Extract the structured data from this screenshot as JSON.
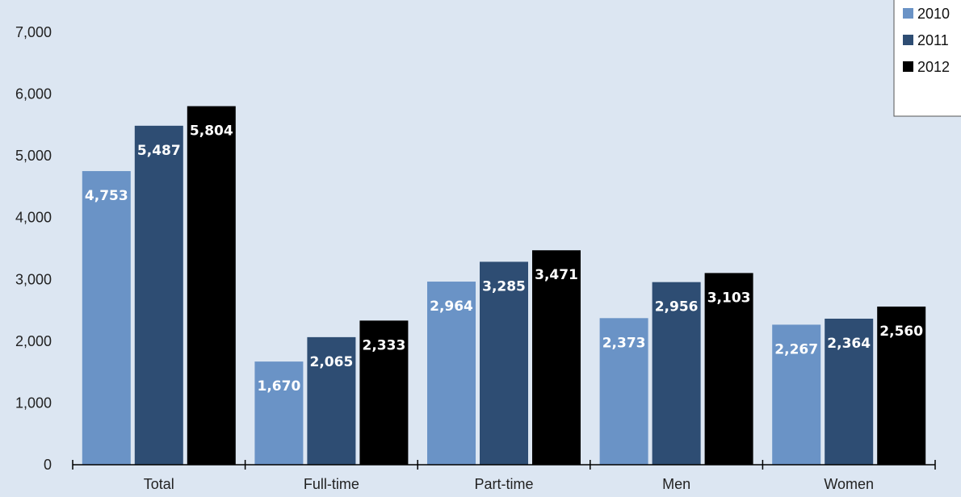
{
  "chart_data": {
    "type": "bar",
    "categories": [
      "Total",
      "Full-time",
      "Part-time",
      "Men",
      "Women"
    ],
    "series": [
      {
        "name": "2010",
        "color": "#6a93c6",
        "values": [
          4753,
          1670,
          2964,
          2373,
          2267
        ],
        "labels": [
          "4,753",
          "1,670",
          "2,964",
          "2,373",
          "2,267"
        ]
      },
      {
        "name": "2011",
        "color": "#2e4d73",
        "values": [
          5487,
          2065,
          3285,
          2956,
          2364
        ],
        "labels": [
          "5,487",
          "2,065",
          "3,285",
          "2,956",
          "2,364"
        ]
      },
      {
        "name": "2012",
        "color": "#000000",
        "values": [
          5804,
          2333,
          3471,
          3103,
          2560
        ],
        "labels": [
          "5,804",
          "2,333",
          "3,471",
          "3,103",
          "2,560"
        ]
      }
    ],
    "ylim": [
      0,
      7000
    ],
    "yticks": [
      0,
      1000,
      2000,
      3000,
      4000,
      5000,
      6000,
      7000
    ],
    "ytick_labels": [
      "0",
      "1,000",
      "2,000",
      "3,000",
      "4,000",
      "5,000",
      "6,000",
      "7,000"
    ],
    "grid": false,
    "legend_position": "top-right",
    "background_color": "#dce6f2"
  }
}
